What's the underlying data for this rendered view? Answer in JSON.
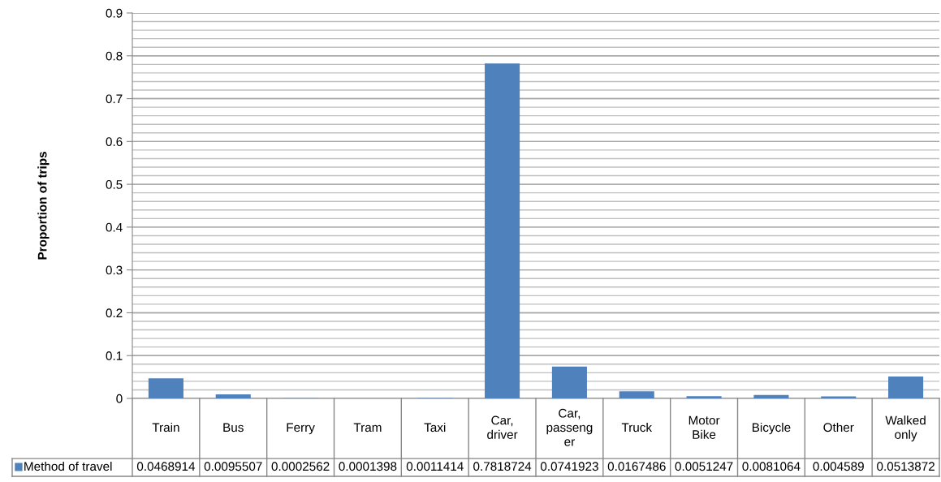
{
  "chart_data": {
    "type": "bar",
    "ylabel": "Proportion of trips",
    "categories": [
      "Train",
      "Bus",
      "Ferry",
      "Tram",
      "Taxi",
      "Car, driver",
      "Car, passenger",
      "Truck",
      "Motor Bike",
      "Bicycle",
      "Other",
      "Walked only"
    ],
    "series": [
      {
        "name": "Method of travel",
        "color": "#4f81bd",
        "values": [
          0.0468914,
          0.0095507,
          0.0002562,
          0.0001398,
          0.0011414,
          0.7818724,
          0.0741923,
          0.0167486,
          0.0051247,
          0.0081064,
          0.004589,
          0.0513872
        ]
      }
    ],
    "ylim": [
      0,
      0.9
    ],
    "yticks": [
      0,
      0.1,
      0.2,
      0.3,
      0.4,
      0.5,
      0.6,
      0.7,
      0.8,
      0.9
    ],
    "grid": "y",
    "legend": "bottom left",
    "data_labels": true
  }
}
